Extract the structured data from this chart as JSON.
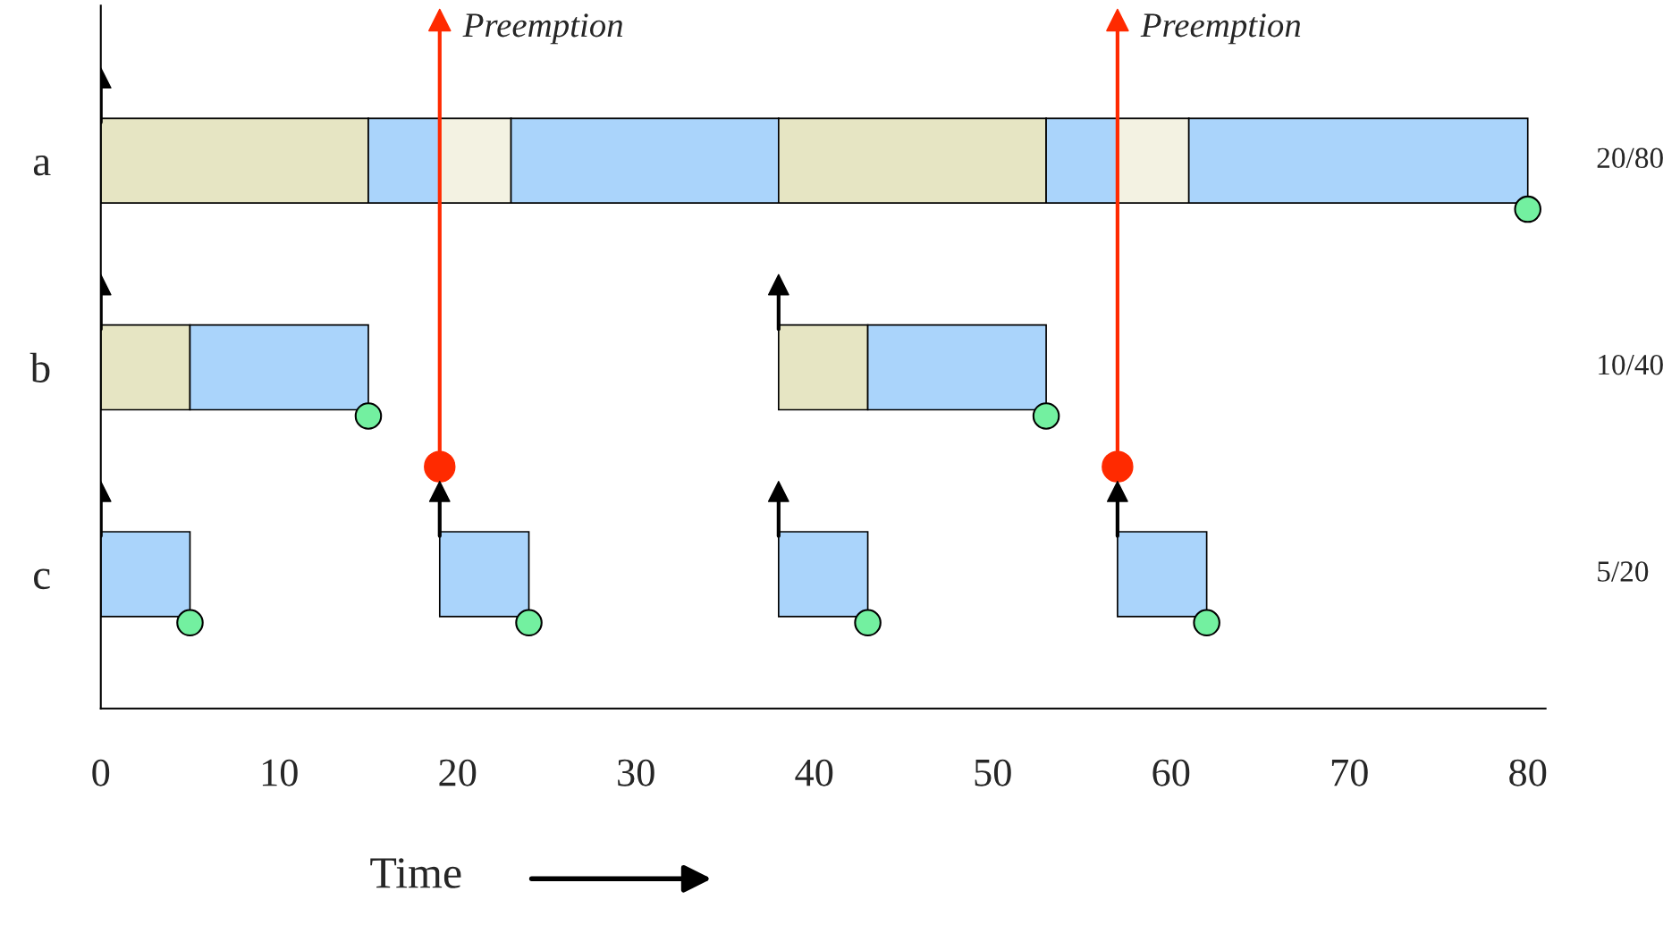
{
  "chart_data": {
    "type": "bar",
    "orientation": "horizontal",
    "categories": [
      "a",
      "b",
      "c"
    ],
    "xlabel": "Time",
    "xlim": [
      0,
      81
    ],
    "xticks": [
      0,
      10,
      20,
      30,
      40,
      50,
      60,
      70,
      80
    ],
    "grid": false,
    "series": [
      {
        "values": [
          15,
          5,
          5
        ],
        "base": [
          0,
          0,
          0
        ],
        "colors": [
          "#e6e5c3",
          "#e6e5c3",
          "#aad4fb"
        ]
      },
      {
        "values": [
          4,
          10,
          5
        ],
        "base": [
          15,
          5,
          19
        ],
        "colors": [
          "#aad4fb",
          "#aad4fb",
          "#aad4fb"
        ]
      },
      {
        "values": [
          4,
          5,
          5
        ],
        "base": [
          19,
          38,
          38
        ],
        "colors": [
          "#f3f2e2",
          "#e6e5c3",
          "#aad4fb"
        ]
      },
      {
        "values": [
          15,
          10,
          5
        ],
        "base": [
          23,
          43,
          57
        ],
        "colors": [
          "#aad4fb",
          "#aad4fb",
          "#aad4fb"
        ]
      },
      {
        "values": [
          15,
          null,
          null
        ],
        "base": [
          38,
          null,
          null
        ],
        "colors": [
          "#e6e5c3",
          null,
          null
        ]
      },
      {
        "values": [
          4,
          null,
          null
        ],
        "base": [
          53,
          null,
          null
        ],
        "colors": [
          "#aad4fb",
          null,
          null
        ]
      },
      {
        "values": [
          4,
          null,
          null
        ],
        "base": [
          57,
          null,
          null
        ],
        "colors": [
          "#f3f2e2",
          null,
          null
        ]
      },
      {
        "values": [
          19,
          null,
          null
        ],
        "base": [
          61,
          null,
          null
        ],
        "colors": [
          "#aad4fb",
          null,
          null
        ]
      },
      {
        "type": "scatter",
        "marker": "circle",
        "color": "#73f0a0",
        "values": [
          80,
          15,
          5
        ]
      },
      {
        "type": "scatter",
        "marker": "circle",
        "color": "#73f0a0",
        "values": [
          null,
          53,
          24
        ]
      },
      {
        "type": "scatter",
        "marker": "circle",
        "color": "#73f0a0",
        "values": [
          null,
          null,
          43
        ]
      },
      {
        "type": "scatter",
        "marker": "circle",
        "color": "#73f0a0",
        "values": [
          null,
          null,
          62
        ]
      },
      {
        "type": "scatter",
        "marker": "triangle",
        "color": "#000000",
        "values": [
          0,
          0,
          0
        ]
      },
      {
        "type": "scatter",
        "marker": "triangle",
        "color": "#000000",
        "values": [
          null,
          38,
          19
        ]
      },
      {
        "type": "scatter",
        "marker": "triangle",
        "color": "#000000",
        "values": [
          null,
          null,
          38
        ]
      },
      {
        "type": "scatter",
        "marker": "triangle",
        "color": "#000000",
        "values": [
          null,
          null,
          57
        ]
      }
    ],
    "ref_lines": [
      {
        "axis": "x",
        "value": 19,
        "label": "Preemption",
        "color": "#ff2a00"
      },
      {
        "axis": "x",
        "value": 57,
        "label": "Preemption",
        "color": "#ff2a00"
      }
    ],
    "annotations": [
      "20/80",
      "10/40",
      "5/20"
    ]
  }
}
